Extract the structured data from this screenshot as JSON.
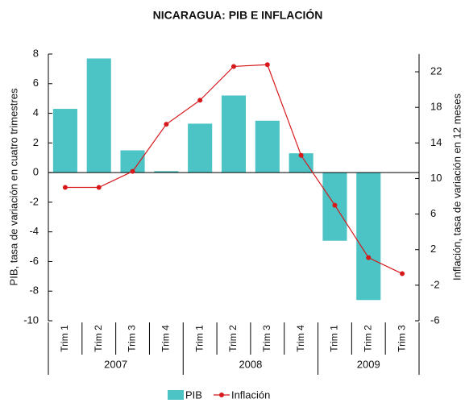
{
  "chart_data": {
    "type": "bar_line",
    "title": "NICARAGUA: PIB E INFLACIÓN",
    "y_label": "PIB, tasa de variación en cuatro trimestres",
    "y2_label": "Inflación, tasa de variación en 12 meses",
    "categories": [
      "Trim 1",
      "Trim 2",
      "Trim 3",
      "Trim 4",
      "Trim 1",
      "Trim 2",
      "Trim 3",
      "Trim 4",
      "Trim 1",
      "Trim 2",
      "Trim 3"
    ],
    "x_groups": [
      {
        "label": "2007",
        "count": 4
      },
      {
        "label": "2008",
        "count": 4
      },
      {
        "label": "2009",
        "count": 3
      }
    ],
    "series": [
      {
        "name": "PIB",
        "kind": "bar",
        "color": "#4cc3c4",
        "values": [
          4.3,
          7.7,
          1.5,
          0.1,
          3.3,
          5.2,
          3.5,
          1.3,
          -4.6,
          -8.6,
          null
        ]
      },
      {
        "name": "Inflación",
        "kind": "line",
        "axis": "y2",
        "color": "#d7191c",
        "values": [
          9.0,
          9.0,
          10.8,
          16.1,
          18.8,
          22.6,
          22.8,
          12.6,
          7.0,
          1.1,
          -0.7
        ]
      }
    ],
    "ylim": [
      -10,
      8
    ],
    "yticks": [
      -10,
      -8,
      -6,
      -4,
      -2,
      0,
      2,
      4,
      6,
      8
    ],
    "y2lim": [
      -6,
      24
    ],
    "y2ticks": [
      -6,
      -2,
      2,
      6,
      10,
      14,
      18,
      22
    ],
    "legend": "bottom"
  }
}
